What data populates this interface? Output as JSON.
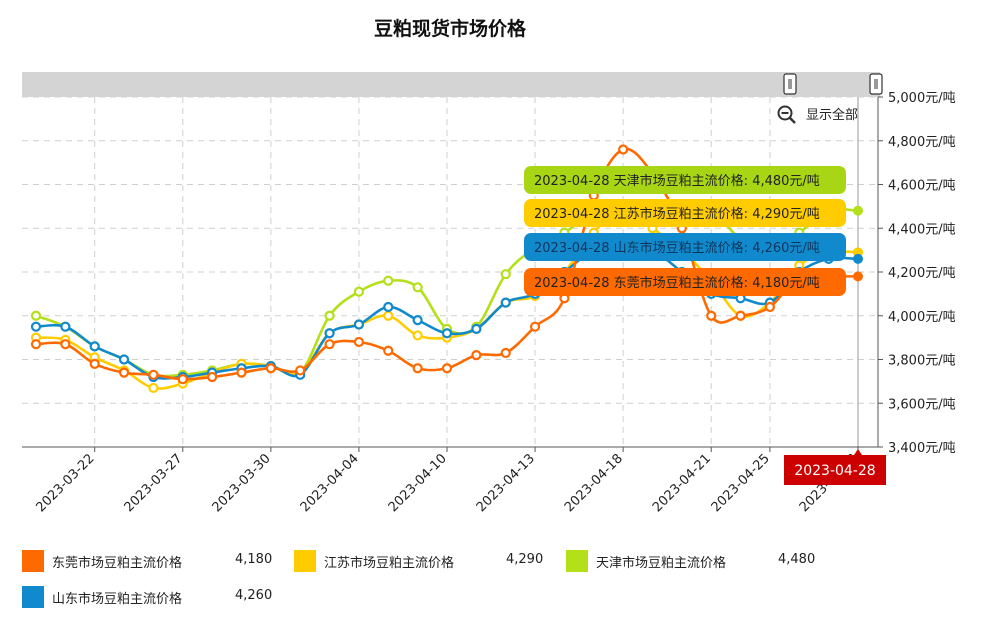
{
  "chart_data": {
    "type": "line",
    "title": "豆粕现货市场价格",
    "x": [
      "2023-03-20",
      "2023-03-21",
      "2023-03-22",
      "2023-03-23",
      "2023-03-24",
      "2023-03-27",
      "2023-03-28",
      "2023-03-29",
      "2023-03-30",
      "2023-03-31",
      "2023-04-03",
      "2023-04-04",
      "2023-04-06",
      "2023-04-07",
      "2023-04-10",
      "2023-04-11",
      "2023-04-12",
      "2023-04-13",
      "2023-04-14",
      "2023-04-17",
      "2023-04-18",
      "2023-04-19",
      "2023-04-20",
      "2023-04-21",
      "2023-04-24",
      "2023-04-25",
      "2023-04-26",
      "2023-04-27",
      "2023-04-28"
    ],
    "xticks": [
      "2023-03-22",
      "2023-03-27",
      "2023-03-30",
      "2023-04-04",
      "2023-04-10",
      "2023-04-13",
      "2023-04-18",
      "2023-04-21",
      "2023-04-25",
      "2023-04-28"
    ],
    "ylim": [
      3400,
      5000
    ],
    "yticks": [
      "3,400元/吨",
      "3,600元/吨",
      "3,800元/吨",
      "4,000元/吨",
      "4,200元/吨",
      "4,400元/吨",
      "4,600元/吨",
      "4,800元/吨",
      "5,000元/吨"
    ],
    "grid": true,
    "legend_position": "bottom",
    "series": [
      {
        "name": "东莞市场豆粕主流价格",
        "color": "#ff6a00",
        "values": [
          3870,
          3870,
          3780,
          3740,
          3730,
          3710,
          3720,
          3740,
          3760,
          3750,
          3870,
          3880,
          3840,
          3760,
          3760,
          3820,
          3830,
          3950,
          4080,
          4550,
          4760,
          4650,
          4400,
          4000,
          4000,
          4040,
          4180,
          4180,
          4180
        ]
      },
      {
        "name": "江苏市场豆粕主流价格",
        "color": "#ffcc00",
        "values": [
          3900,
          3890,
          3810,
          3750,
          3670,
          3690,
          3740,
          3780,
          3770,
          3740,
          3920,
          3960,
          4000,
          3910,
          3900,
          3940,
          4060,
          4090,
          4200,
          4380,
          4500,
          4400,
          4300,
          4160,
          4000,
          4060,
          4230,
          4290,
          4290
        ]
      },
      {
        "name": "天津市场豆粕主流价格",
        "color": "#b3e019",
        "values": [
          4000,
          3950,
          3860,
          3800,
          3730,
          3730,
          3750,
          3780,
          3770,
          3740,
          4000,
          4110,
          4160,
          4130,
          3940,
          3950,
          4190,
          4310,
          4380,
          4470,
          4480,
          4480,
          4480,
          4480,
          4350,
          4300,
          4380,
          4480,
          4480
        ]
      },
      {
        "name": "山东市场豆粕主流价格",
        "color": "#118acd",
        "values": [
          3950,
          3950,
          3860,
          3800,
          3720,
          3720,
          3740,
          3760,
          3770,
          3730,
          3920,
          3960,
          4040,
          3980,
          3920,
          3940,
          4060,
          4100,
          4200,
          4300,
          4320,
          4300,
          4200,
          4100,
          4080,
          4060,
          4200,
          4260,
          4260
        ]
      }
    ],
    "cursor_date": "2023-04-28",
    "tooltips": [
      {
        "label": "2023-04-28 天津市场豆粕主流价格: 4,480元/吨",
        "color": "#a8d514"
      },
      {
        "label": "2023-04-28 江苏市场豆粕主流价格: 4,290元/吨",
        "color": "#ffcc00"
      },
      {
        "label": "2023-04-28 山东市场豆粕主流价格: 4,260元/吨",
        "color": "#118acd"
      },
      {
        "label": "2023-04-28 东莞市场豆粕主流价格: 4,180元/吨",
        "color": "#ff6a00"
      }
    ]
  },
  "toolbar": {
    "show_all_label": "显示全部",
    "zoom_icon": "zoom-out-icon"
  },
  "legend": [
    {
      "name": "东莞市场豆粕主流价格",
      "value": "4,180",
      "color": "#ff6a00"
    },
    {
      "name": "江苏市场豆粕主流价格",
      "value": "4,290",
      "color": "#ffcc00"
    },
    {
      "name": "天津市场豆粕主流价格",
      "value": "4,480",
      "color": "#b3e019"
    },
    {
      "name": "山东市场豆粕主流价格",
      "value": "4,260",
      "color": "#118acd"
    }
  ]
}
